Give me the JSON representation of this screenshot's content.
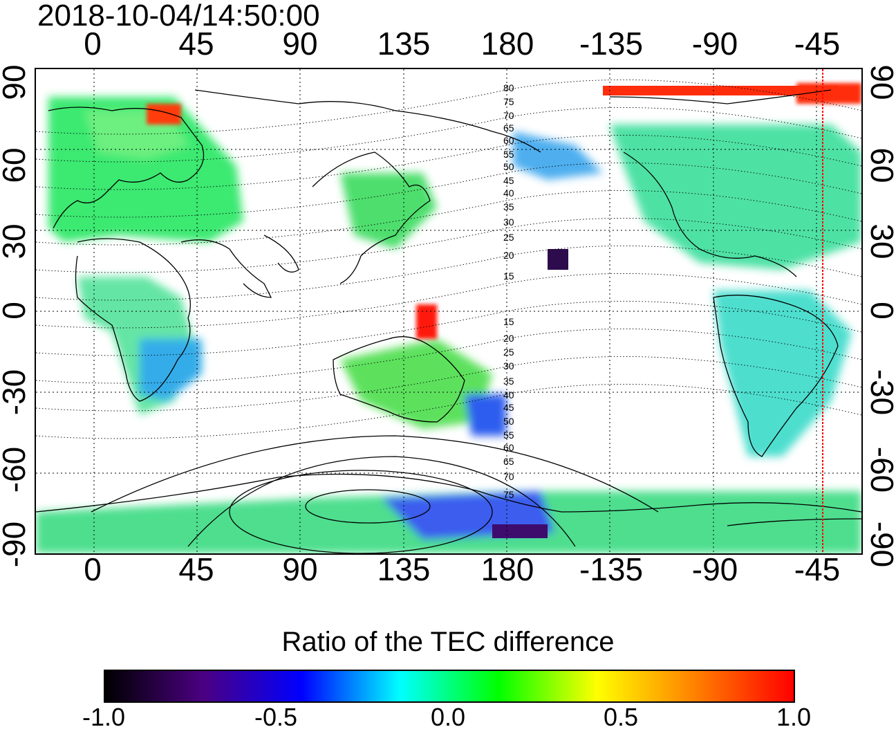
{
  "timestamp": "2018-10-04/14:50:00",
  "map": {
    "top_ticks": [
      "0",
      "45",
      "90",
      "135",
      "180",
      "-135",
      "-90",
      "-45"
    ],
    "bottom_ticks": [
      "0",
      "45",
      "90",
      "135",
      "180",
      "-135",
      "-90",
      "-45"
    ],
    "left_ticks": [
      "90",
      "60",
      "30",
      "0",
      "-30",
      "-60",
      "-90"
    ],
    "right_ticks": [
      "90",
      "60",
      "30",
      "0",
      "-30",
      "-60",
      "-90"
    ],
    "mag_labels_north": [
      "80",
      "75",
      "70",
      "65",
      "60",
      "55",
      "50",
      "45",
      "40",
      "35",
      "30",
      "25",
      "20",
      "15"
    ],
    "mag_labels_south": [
      "15",
      "20",
      "25",
      "30",
      "35",
      "40",
      "45",
      "50",
      "55",
      "60",
      "65",
      "70",
      "75"
    ],
    "marker_line_color": "#ff0000"
  },
  "colorbar": {
    "title": "Ratio of the TEC difference",
    "ticks": [
      "-1.0",
      "-0.5",
      "0.0",
      "0.5",
      "1.0"
    ],
    "colors": [
      "#000000",
      "#4b0082",
      "#0000ff",
      "#00ffff",
      "#00ff00",
      "#ffff00",
      "#ff8000",
      "#ff0000"
    ]
  }
}
